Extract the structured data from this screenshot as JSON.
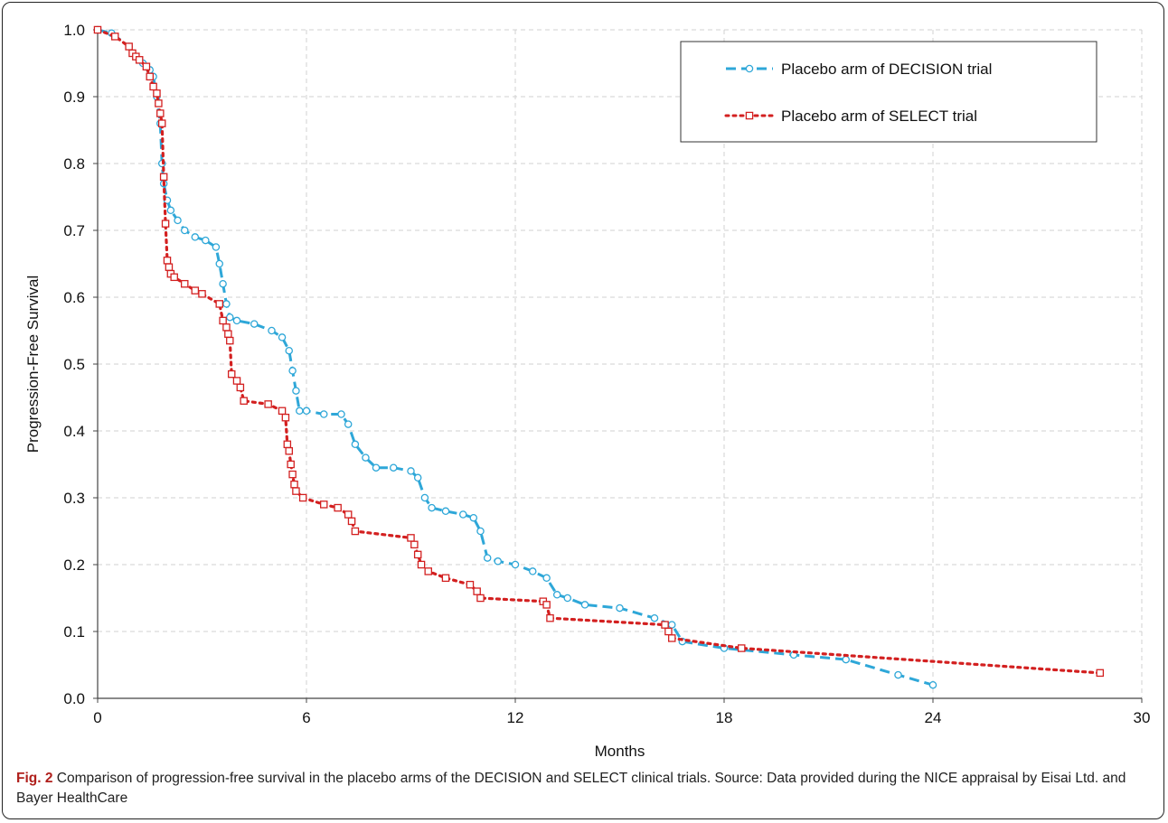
{
  "chart_data": {
    "type": "line",
    "xlabel": "Months",
    "ylabel": "Progression-Free Survival",
    "xlim": [
      0,
      30
    ],
    "ylim": [
      0,
      1.0
    ],
    "x_ticks": [
      "0",
      "6",
      "12",
      "18",
      "24",
      "30"
    ],
    "y_ticks": [
      "0.0",
      "0.1",
      "0.2",
      "0.3",
      "0.4",
      "0.5",
      "0.6",
      "0.7",
      "0.8",
      "0.9",
      "1.0"
    ],
    "grid": true,
    "legend_position": "top-right",
    "series": [
      {
        "name": "Placebo arm of DECISION trial",
        "color": "#2ea7d8",
        "line_style": "dashed",
        "marker": "circle",
        "x": [
          0,
          0.4,
          0.9,
          1.1,
          1.3,
          1.5,
          1.6,
          1.7,
          1.8,
          1.85,
          1.9,
          2.0,
          2.1,
          2.3,
          2.5,
          2.8,
          3.1,
          3.4,
          3.5,
          3.6,
          3.7,
          3.8,
          4.0,
          4.5,
          5.0,
          5.3,
          5.5,
          5.6,
          5.7,
          5.8,
          6.0,
          6.5,
          7.0,
          7.2,
          7.4,
          7.7,
          8.0,
          8.5,
          9.0,
          9.2,
          9.4,
          9.6,
          10.0,
          10.5,
          10.8,
          11.0,
          11.2,
          11.5,
          12.0,
          12.5,
          12.9,
          13.2,
          13.5,
          14.0,
          15.0,
          16.0,
          16.5,
          16.8,
          18.0,
          20.0,
          21.5,
          23.0,
          24.0
        ],
        "y": [
          1.0,
          0.995,
          0.975,
          0.96,
          0.95,
          0.94,
          0.93,
          0.9,
          0.86,
          0.8,
          0.77,
          0.745,
          0.73,
          0.715,
          0.7,
          0.69,
          0.685,
          0.675,
          0.65,
          0.62,
          0.59,
          0.57,
          0.565,
          0.56,
          0.55,
          0.54,
          0.52,
          0.49,
          0.46,
          0.43,
          0.43,
          0.425,
          0.425,
          0.41,
          0.38,
          0.36,
          0.345,
          0.345,
          0.34,
          0.33,
          0.3,
          0.285,
          0.28,
          0.275,
          0.27,
          0.25,
          0.21,
          0.205,
          0.2,
          0.19,
          0.18,
          0.155,
          0.15,
          0.14,
          0.135,
          0.12,
          0.11,
          0.085,
          0.075,
          0.065,
          0.058,
          0.035,
          0.02
        ]
      },
      {
        "name": "Placebo arm of SELECT trial",
        "color": "#d32020",
        "line_style": "dotted",
        "marker": "square",
        "x": [
          0,
          0.5,
          0.9,
          1.0,
          1.1,
          1.2,
          1.4,
          1.5,
          1.6,
          1.7,
          1.75,
          1.8,
          1.85,
          1.9,
          1.95,
          2.0,
          2.05,
          2.1,
          2.2,
          2.5,
          2.8,
          3.0,
          3.5,
          3.6,
          3.7,
          3.75,
          3.8,
          3.85,
          4.0,
          4.1,
          4.2,
          4.9,
          5.3,
          5.4,
          5.45,
          5.5,
          5.55,
          5.6,
          5.65,
          5.7,
          5.9,
          6.5,
          6.9,
          7.2,
          7.3,
          7.4,
          9.0,
          9.1,
          9.2,
          9.3,
          9.5,
          10.0,
          10.7,
          10.9,
          11.0,
          12.8,
          12.9,
          13.0,
          16.3,
          16.4,
          16.5,
          18.5,
          28.8
        ],
        "y": [
          1.0,
          0.99,
          0.975,
          0.965,
          0.96,
          0.955,
          0.945,
          0.93,
          0.915,
          0.905,
          0.89,
          0.875,
          0.86,
          0.78,
          0.71,
          0.655,
          0.645,
          0.635,
          0.63,
          0.62,
          0.61,
          0.605,
          0.59,
          0.565,
          0.555,
          0.545,
          0.535,
          0.485,
          0.475,
          0.465,
          0.445,
          0.44,
          0.43,
          0.42,
          0.38,
          0.37,
          0.35,
          0.335,
          0.32,
          0.31,
          0.3,
          0.29,
          0.285,
          0.275,
          0.265,
          0.25,
          0.24,
          0.23,
          0.215,
          0.2,
          0.19,
          0.18,
          0.17,
          0.16,
          0.15,
          0.145,
          0.14,
          0.12,
          0.11,
          0.1,
          0.09,
          0.075,
          0.038
        ]
      }
    ]
  },
  "caption": {
    "fig_label": "Fig. 2",
    "text": " Comparison of progression-free survival in the placebo arms of the DECISION and SELECT clinical trials. Source: Data provided during the NICE appraisal by Eisai Ltd. and Bayer HealthCare"
  }
}
